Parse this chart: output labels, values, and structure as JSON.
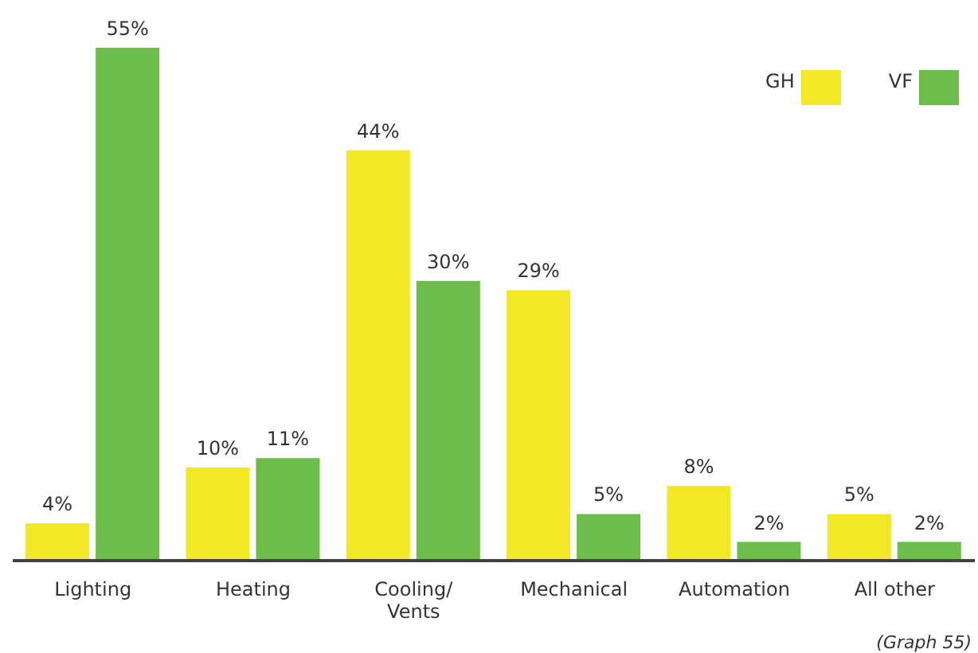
{
  "chart_data": {
    "type": "bar",
    "categories": [
      "Lighting",
      "Heating",
      "Cooling/ Vents",
      "Mechanical",
      "Automation",
      "All other"
    ],
    "series": [
      {
        "name": "GH",
        "color": "#f3e826",
        "values": [
          4,
          10,
          44,
          29,
          8,
          5
        ],
        "value_labels": [
          "4%",
          "10%",
          "44%",
          "29%",
          "8%",
          "5%"
        ]
      },
      {
        "name": "VF",
        "color": "#6dbd4b",
        "values": [
          55,
          11,
          30,
          5,
          2,
          2
        ],
        "value_labels": [
          "55%",
          "11%",
          "30%",
          "5%",
          "2%",
          "2%"
        ]
      }
    ],
    "legend": "top right",
    "annotations": [
      "(Graph 55)"
    ]
  }
}
